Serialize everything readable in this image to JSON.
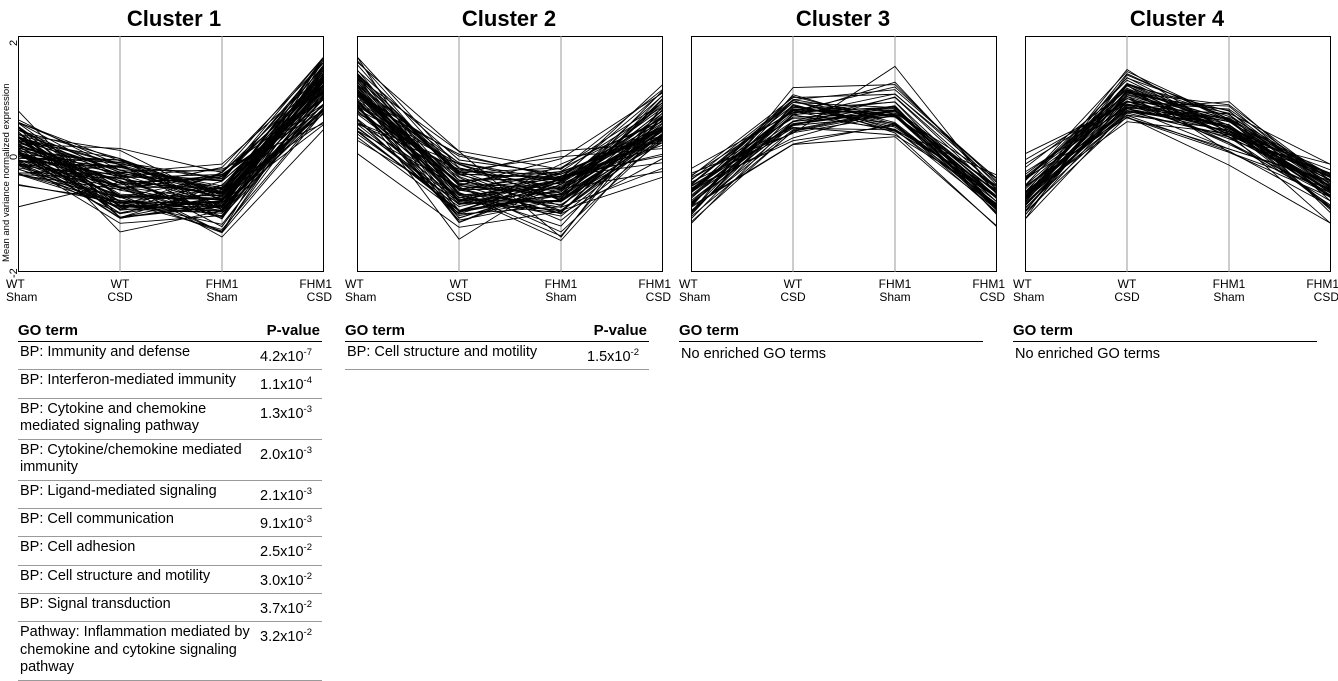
{
  "y_axis": {
    "label": "Mean and variance normalized expression",
    "ticks": [
      "2",
      "0",
      "-2"
    ],
    "ylim": [
      -2,
      2
    ]
  },
  "x_categories": [
    {
      "line1": "WT",
      "line2": "Sham"
    },
    {
      "line1": "WT",
      "line2": "CSD"
    },
    {
      "line1": "FHM1",
      "line2": "Sham"
    },
    {
      "line1": "FHM1",
      "line2": "CSD"
    }
  ],
  "chart_data": [
    {
      "type": "line",
      "title": "Cluster 1",
      "x": [
        "WT Sham",
        "WT CSD",
        "FHM1 Sham",
        "FHM1 CSD"
      ],
      "ylim": [
        -2,
        2
      ],
      "mean_profile": [
        0.1,
        -0.5,
        -0.75,
        1.15
      ],
      "n_lines": 90,
      "spread": 0.3
    },
    {
      "type": "line",
      "title": "Cluster 2",
      "x": [
        "WT Sham",
        "WT CSD",
        "FHM1 Sham",
        "FHM1 CSD"
      ],
      "ylim": [
        -2,
        2
      ],
      "mean_profile": [
        1.0,
        -0.6,
        -0.7,
        0.45
      ],
      "n_lines": 80,
      "spread": 0.32
    },
    {
      "type": "line",
      "title": "Cluster 3",
      "x": [
        "WT Sham",
        "WT CSD",
        "FHM1 Sham",
        "FHM1 CSD"
      ],
      "ylim": [
        -2,
        2
      ],
      "mean_profile": [
        -0.7,
        0.6,
        0.75,
        -0.75
      ],
      "n_lines": 50,
      "spread": 0.22
    },
    {
      "type": "line",
      "title": "Cluster 4",
      "x": [
        "WT Sham",
        "WT CSD",
        "FHM1 Sham",
        "FHM1 CSD"
      ],
      "ylim": [
        -2,
        2
      ],
      "mean_profile": [
        -0.7,
        0.95,
        0.45,
        -0.55
      ],
      "n_lines": 60,
      "spread": 0.22
    }
  ],
  "tables": [
    {
      "header_term": "GO term",
      "header_p": "P-value",
      "rows": [
        {
          "term": "BP: Immunity and defense",
          "p_mant": "4.2x10",
          "p_exp": "-7"
        },
        {
          "term": "BP: Interferon-mediated immunity",
          "p_mant": "1.1x10",
          "p_exp": "-4"
        },
        {
          "term": "BP: Cytokine and chemokine mediated signaling pathway",
          "p_mant": "1.3x10",
          "p_exp": "-3"
        },
        {
          "term": "BP: Cytokine/chemokine mediated immunity",
          "p_mant": "2.0x10",
          "p_exp": "-3"
        },
        {
          "term": "BP: Ligand-mediated signaling",
          "p_mant": "2.1x10",
          "p_exp": "-3"
        },
        {
          "term": "BP: Cell communication",
          "p_mant": "9.1x10",
          "p_exp": "-3"
        },
        {
          "term": "BP: Cell adhesion",
          "p_mant": "2.5x10",
          "p_exp": "-2"
        },
        {
          "term": "BP: Cell structure and motility",
          "p_mant": "3.0x10",
          "p_exp": "-2"
        },
        {
          "term": "BP: Signal transduction",
          "p_mant": "3.7x10",
          "p_exp": "-2"
        },
        {
          "term": "Pathway: Inflammation mediated by chemokine and cytokine signaling pathway",
          "p_mant": "3.2x10",
          "p_exp": "-2"
        }
      ]
    },
    {
      "header_term": "GO term",
      "header_p": "P-value",
      "rows": [
        {
          "term": "BP: Cell structure and motility",
          "p_mant": "1.5x10",
          "p_exp": "-2"
        }
      ]
    },
    {
      "header_term": "GO term",
      "header_p": "",
      "empty_text": "No enriched GO terms",
      "rows": []
    },
    {
      "header_term": "GO term",
      "header_p": "",
      "empty_text": "No enriched GO terms",
      "rows": []
    }
  ]
}
